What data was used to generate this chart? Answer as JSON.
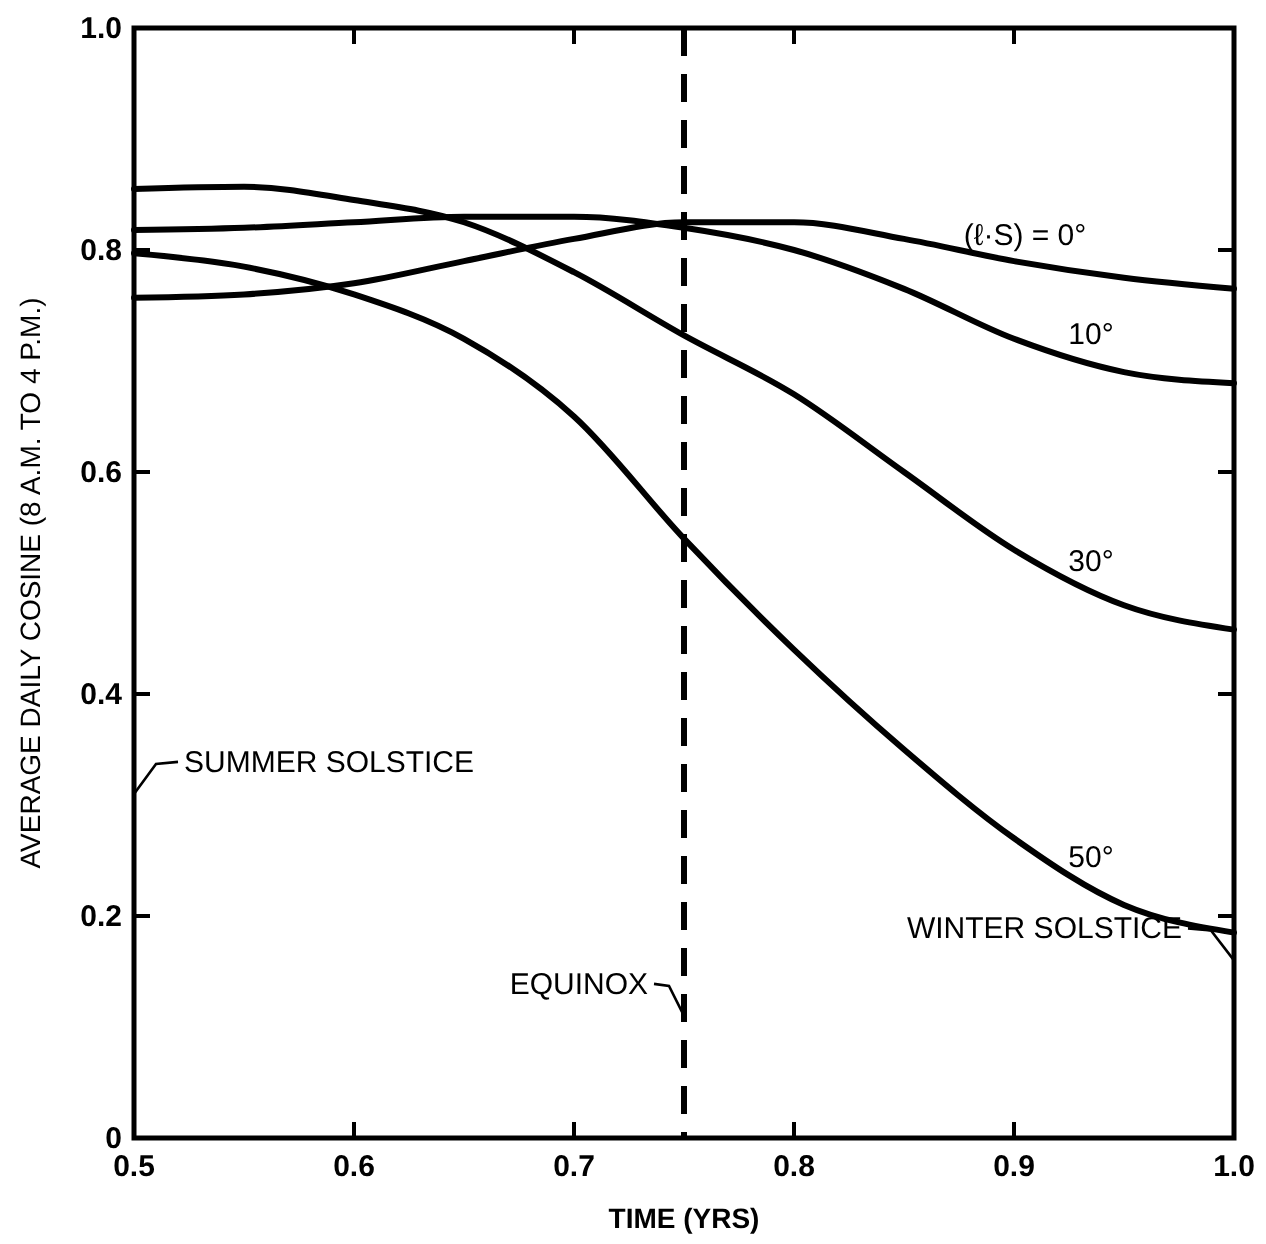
{
  "chart_data": {
    "type": "line",
    "xlabel": "TIME (YRS)",
    "ylabel": "AVERAGE DAILY COSINE (8 A.M. TO 4 P.M.)",
    "xlim": [
      0.5,
      1
    ],
    "ylim": [
      0,
      1
    ],
    "xticks": [
      0.5,
      0.6,
      0.7,
      0.8,
      0.9,
      {
        "value": 1,
        "label": "1.0"
      }
    ],
    "yticks": [
      0,
      0.2,
      0.4,
      0.6,
      0.8,
      {
        "value": 1,
        "label": "1.0"
      }
    ],
    "grid": false,
    "marker": "none",
    "line_style": "solid",
    "series": [
      {
        "name": "(ℓ·S) = 0°",
        "color": "#000000",
        "x": [
          0.5,
          0.55,
          0.6,
          0.65,
          0.7,
          0.75,
          0.8,
          0.85,
          0.9,
          0.95,
          1.0
        ],
        "values": [
          0.757,
          0.76,
          0.77,
          0.79,
          0.81,
          0.825,
          0.825,
          0.81,
          0.79,
          0.775,
          0.765
        ]
      },
      {
        "name": "10°",
        "color": "#000000",
        "x": [
          0.5,
          0.55,
          0.6,
          0.65,
          0.7,
          0.75,
          0.8,
          0.85,
          0.9,
          0.95,
          1.0
        ],
        "values": [
          0.818,
          0.82,
          0.825,
          0.83,
          0.83,
          0.82,
          0.8,
          0.765,
          0.72,
          0.69,
          0.68
        ]
      },
      {
        "name": "30°",
        "color": "#000000",
        "x": [
          0.5,
          0.55,
          0.6,
          0.65,
          0.7,
          0.75,
          0.8,
          0.85,
          0.9,
          0.95,
          1.0
        ],
        "values": [
          0.855,
          0.857,
          0.845,
          0.825,
          0.78,
          0.723,
          0.67,
          0.6,
          0.53,
          0.48,
          0.458
        ]
      },
      {
        "name": "50°",
        "color": "#000000",
        "x": [
          0.5,
          0.55,
          0.6,
          0.65,
          0.7,
          0.75,
          0.8,
          0.85,
          0.9,
          0.95,
          1.0
        ],
        "values": [
          0.797,
          0.785,
          0.76,
          0.72,
          0.65,
          0.54,
          0.44,
          0.35,
          0.27,
          0.21,
          0.185
        ]
      }
    ],
    "ref_lines": [
      {
        "axis": "x",
        "value": 0.75,
        "line_style": "dashed",
        "color": "#000000"
      }
    ],
    "annotations": [
      "SUMMER SOLSTICE",
      {
        "text": "EQUINOX",
        "x": 0.75,
        "y": 0.11
      },
      "WINTER SOLSTICE"
    ]
  }
}
